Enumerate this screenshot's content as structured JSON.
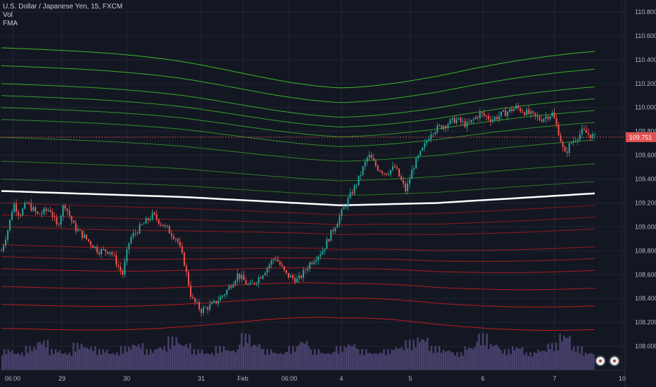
{
  "legend": {
    "symbol": "U.S. Dollar / Japanese Yen, 15, FXCM",
    "vol": "Vol",
    "fma": "FMA"
  },
  "price_label": "109.751",
  "colors": {
    "background": "#131722",
    "grid": "#1f2433",
    "candle_up": "#26a69a",
    "candle_down": "#ef5350",
    "ribbon_green": "#3fbf2a",
    "ribbon_red": "#c81d1d",
    "ribbon_center": "#ffffff",
    "volume": "#5b4f86",
    "price_tag": "#e05252"
  },
  "chart_data": {
    "type": "line",
    "y_axis": {
      "ticks": [
        "110.800",
        "110.600",
        "110.400",
        "110.200",
        "110.000",
        "109.800",
        "109.600",
        "109.400",
        "109.200",
        "109.000",
        "108.800",
        "108.600",
        "108.400",
        "108.200",
        "108.000"
      ],
      "ylim": [
        107.8,
        110.9
      ]
    },
    "x_axis": {
      "ticks": [
        "06:00",
        "29",
        "30",
        "31",
        "Feb",
        "06:00",
        "4",
        "5",
        "6",
        "7",
        "10"
      ]
    },
    "last_price": 109.751,
    "price_path": [
      [
        0.0,
        108.8
      ],
      [
        0.6,
        109.0
      ],
      [
        1.0,
        109.2
      ],
      [
        1.5,
        109.1
      ],
      [
        2.1,
        109.2
      ],
      [
        3.0,
        109.1
      ],
      [
        4.0,
        109.15
      ],
      [
        4.6,
        109.0
      ],
      [
        5.2,
        109.2
      ],
      [
        6.0,
        109.0
      ],
      [
        7.0,
        108.9
      ],
      [
        8.0,
        108.8
      ],
      [
        9.0,
        108.8
      ],
      [
        10.0,
        108.6
      ],
      [
        10.6,
        108.9
      ],
      [
        11.5,
        109.0
      ],
      [
        12.5,
        109.1
      ],
      [
        13.5,
        109.0
      ],
      [
        14.5,
        108.9
      ],
      [
        15.1,
        108.7
      ],
      [
        15.7,
        108.4
      ],
      [
        16.5,
        108.3
      ],
      [
        17.5,
        108.35
      ],
      [
        18.5,
        108.45
      ],
      [
        19.5,
        108.6
      ],
      [
        20.5,
        108.5
      ],
      [
        21.5,
        108.6
      ],
      [
        22.6,
        108.75
      ],
      [
        23.5,
        108.6
      ],
      [
        24.5,
        108.55
      ],
      [
        25.5,
        108.7
      ],
      [
        26.5,
        108.8
      ],
      [
        27.5,
        109.0
      ],
      [
        28.5,
        109.2
      ],
      [
        29.5,
        109.4
      ],
      [
        30.3,
        109.6
      ],
      [
        31.0,
        109.5
      ],
      [
        31.7,
        109.45
      ],
      [
        32.5,
        109.5
      ],
      [
        33.4,
        109.3
      ],
      [
        34.0,
        109.5
      ],
      [
        34.8,
        109.65
      ],
      [
        35.5,
        109.8
      ],
      [
        36.5,
        109.85
      ],
      [
        37.5,
        109.9
      ],
      [
        38.5,
        109.85
      ],
      [
        39.5,
        109.95
      ],
      [
        40.5,
        109.9
      ],
      [
        41.5,
        109.95
      ],
      [
        42.5,
        110.0
      ],
      [
        43.5,
        109.95
      ],
      [
        44.5,
        109.9
      ],
      [
        45.5,
        109.95
      ],
      [
        46.0,
        109.8
      ],
      [
        46.5,
        109.6
      ],
      [
        47.0,
        109.7
      ],
      [
        48.0,
        109.8
      ],
      [
        49.0,
        109.75
      ]
    ],
    "ribbon_center": [
      [
        0,
        109.3
      ],
      [
        15,
        109.25
      ],
      [
        28,
        109.18
      ],
      [
        36,
        109.2
      ],
      [
        49,
        109.28
      ]
    ],
    "ribbon_green_offsets": [
      0.1,
      0.25,
      0.45,
      0.6,
      0.7,
      0.8,
      0.9,
      1.05,
      1.2
    ],
    "ribbon_red_offsets": [
      -0.1,
      -0.2,
      -0.3,
      -0.45,
      -0.55,
      -0.65,
      -0.8,
      -0.95,
      -1.15
    ],
    "volume_relative": [
      0.4,
      0.3,
      0.5,
      0.7,
      0.4,
      0.3,
      0.6,
      0.5,
      0.4,
      0.3,
      0.5,
      0.6,
      0.4,
      0.5,
      0.8,
      0.6,
      0.4,
      0.3,
      0.5,
      0.4,
      0.9,
      0.6,
      0.4,
      0.3,
      0.5,
      0.7,
      0.4,
      0.3,
      0.5,
      0.6,
      0.4,
      0.3,
      0.4,
      0.5,
      0.7,
      0.8,
      0.5,
      0.4,
      0.3,
      0.5,
      0.9,
      0.6,
      0.4,
      0.5,
      0.3,
      0.4,
      0.6,
      0.9,
      0.5,
      0.3
    ]
  }
}
